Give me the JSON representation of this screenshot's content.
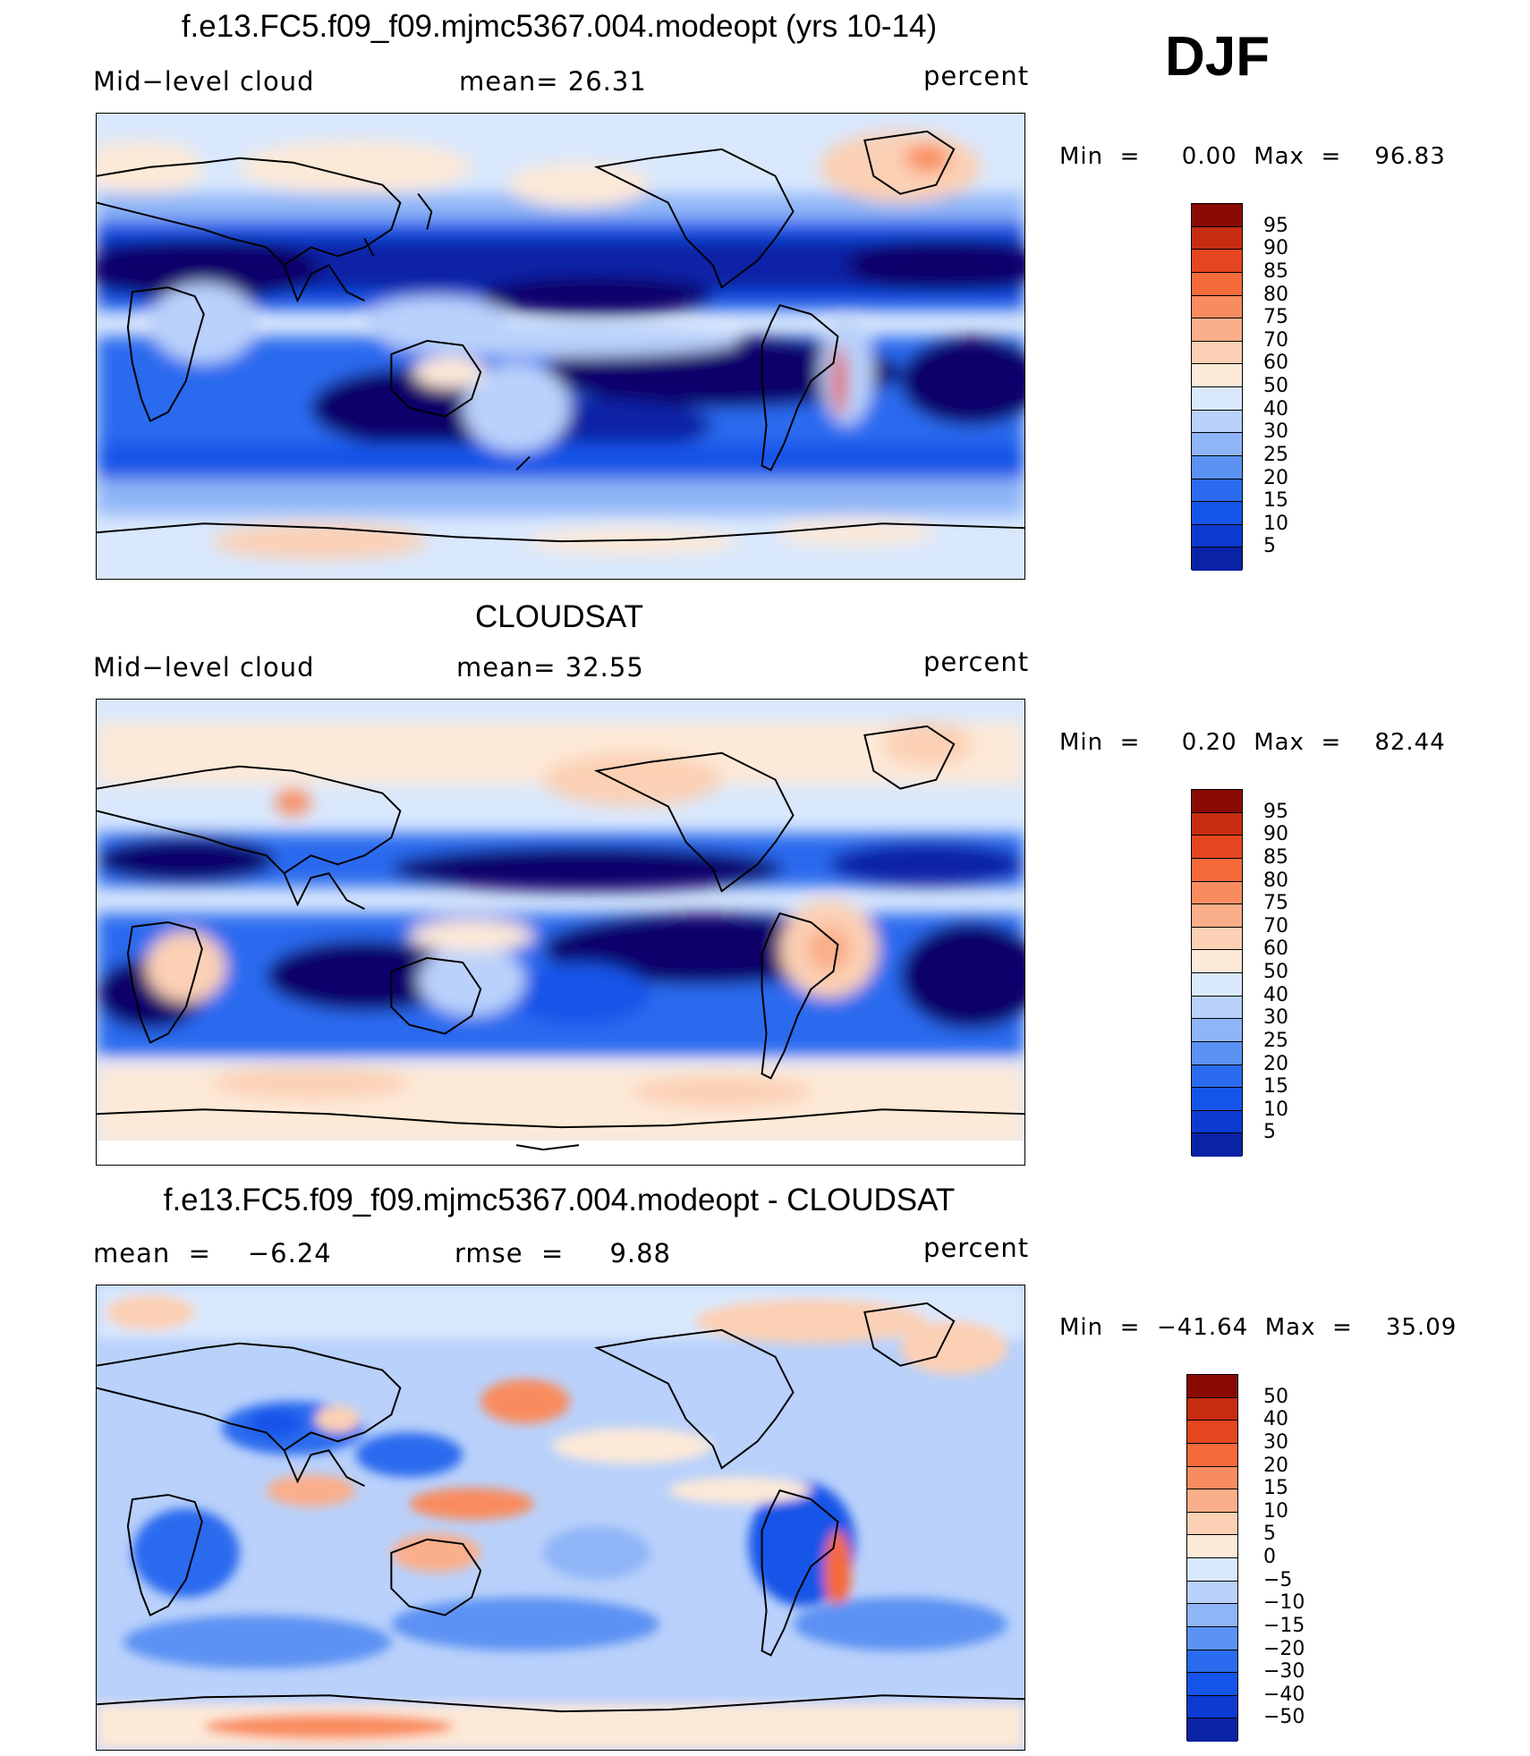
{
  "season_label": "DJF",
  "colors": {
    "blue_scale": [
      "#08006b",
      "#0a22a6",
      "#0d3ad1",
      "#1454e8",
      "#2a6bef",
      "#5b92f3",
      "#8fb5f7",
      "#b9d1fb",
      "#d9e8fd"
    ],
    "red_scale": [
      "#fde9d8",
      "#fcd0b4",
      "#fbae8a",
      "#f98c5e",
      "#f56a3a",
      "#e5461f",
      "#c62d10",
      "#8a0a05"
    ]
  },
  "panels": [
    {
      "title": "f.e13.FC5.f09_f09.mjmc5367.004.modeopt (yrs 10-14)",
      "left_label": "Mid−level cloud",
      "center_label": "mean=   26.31",
      "right_label": "percent",
      "minmax": "Min  =     0.00  Max  =    96.83",
      "colorbar_labels": [
        "95",
        "90",
        "85",
        "80",
        "75",
        "70",
        "60",
        "50",
        "40",
        "30",
        "25",
        "20",
        "15",
        "10",
        "5"
      ]
    },
    {
      "title": "CLOUDSAT",
      "left_label": "Mid−level cloud",
      "center_label": "mean=   32.55",
      "right_label": "percent",
      "minmax": "Min  =     0.20  Max  =    82.44",
      "colorbar_labels": [
        "95",
        "90",
        "85",
        "80",
        "75",
        "70",
        "60",
        "50",
        "40",
        "30",
        "25",
        "20",
        "15",
        "10",
        "5"
      ]
    },
    {
      "title": "f.e13.FC5.f09_f09.mjmc5367.004.modeopt - CLOUDSAT",
      "left_label": "mean  =    −6.24",
      "center_label": "rmse  =     9.88",
      "right_label": "percent",
      "minmax": "Min  =  −41.64  Max  =    35.09",
      "colorbar_labels": [
        "50",
        "40",
        "30",
        "20",
        "15",
        "10",
        "5",
        "0",
        "−5",
        "−10",
        "−15",
        "−20",
        "−30",
        "−40",
        "−50"
      ]
    }
  ]
}
